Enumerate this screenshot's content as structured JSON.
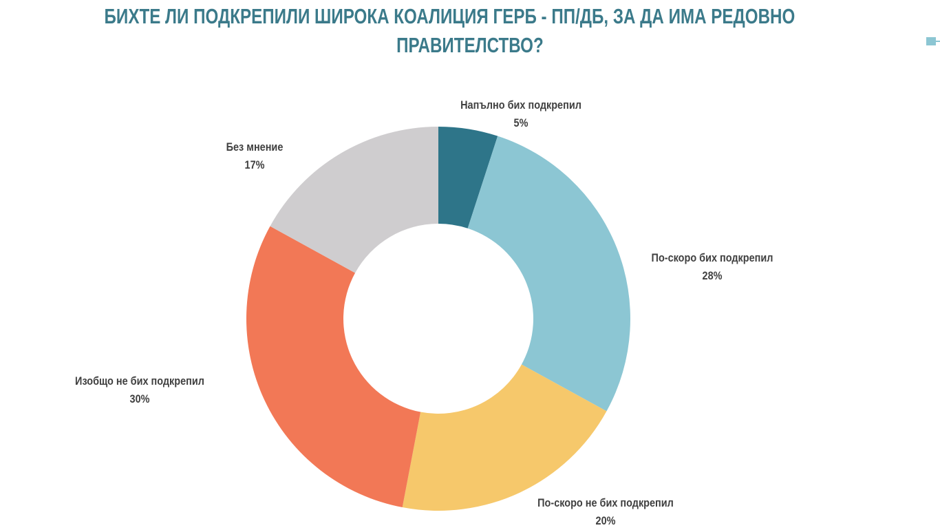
{
  "chart_data": {
    "type": "pie",
    "variant": "donut",
    "title_line1": "БИХТЕ ЛИ ПОДКРЕПИЛИ ШИРОКА КОАЛИЦИЯ ГЕРБ - ПП/ДБ, ЗА ДА ИМА РЕДОВНО",
    "title_line2": "ПРАВИТЕЛСТВО?",
    "unit": "%",
    "slices": [
      {
        "label": "Напълно бих подкрепил",
        "value": 5,
        "value_label": "5%",
        "color": "#2e7589"
      },
      {
        "label": "По-скоро бих подкрепил",
        "value": 28,
        "value_label": "28%",
        "color": "#8cc6d3"
      },
      {
        "label": "По-скоро не бих подкрепил",
        "value": 20,
        "value_label": "20%",
        "color": "#f6c86b"
      },
      {
        "label": "Изобщо не бих подкрепил",
        "value": 30,
        "value_label": "30%",
        "color": "#f27856"
      },
      {
        "label": "Без мнение",
        "value": 17,
        "value_label": "17%",
        "color": "#cfcdcf"
      }
    ]
  }
}
